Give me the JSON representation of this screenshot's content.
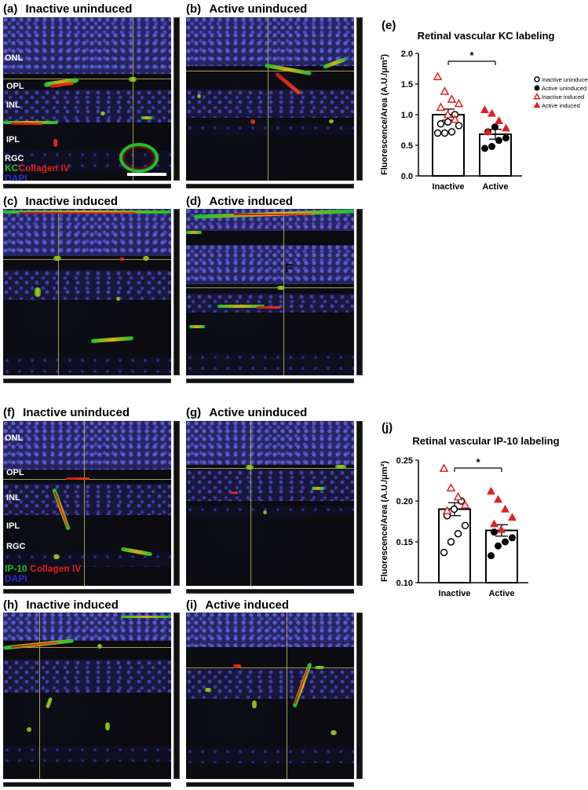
{
  "panels": {
    "a": {
      "letter": "(a)",
      "title": "Inactive uninduced"
    },
    "b": {
      "letter": "(b)",
      "title": "Active uninduced"
    },
    "c": {
      "letter": "(c)",
      "title": "Inactive induced"
    },
    "d": {
      "letter": "(d)",
      "title": "Active induced"
    },
    "f": {
      "letter": "(f)",
      "title": "Inactive uninduced"
    },
    "g": {
      "letter": "(g)",
      "title": "Active uninduced"
    },
    "h": {
      "letter": "(h)",
      "title": "Inactive induced"
    },
    "i": {
      "letter": "(i)",
      "title": "Active induced"
    }
  },
  "layers_top": [
    "ONL",
    "OPL",
    "INL",
    "IPL",
    "RGC"
  ],
  "layers_bottom": [
    "ONL",
    "OPL",
    "INL",
    "IPL",
    "RGC"
  ],
  "stain_top": {
    "green": "KC",
    "red": "Collagen IV",
    "blue": "DAPI"
  },
  "stain_bottom": {
    "green": "IP-10",
    "red": "Collagen IV",
    "blue": "DAPI"
  },
  "panel_d_mark": "F",
  "colors": {
    "green": "#1fbf2e",
    "red": "#e0201e",
    "blue": "#2233cc"
  },
  "chart_data": [
    {
      "panel": "(e)",
      "type": "bar",
      "title": "Retinal vascular KC labeling",
      "ylabel": "Fluorescence/Area (A.U./μm²)",
      "categories": [
        "Inactive",
        "Active"
      ],
      "values": [
        1.0,
        0.68
      ],
      "errors": [
        0.09,
        0.08
      ],
      "ylim": [
        0,
        2.0
      ],
      "yticks": [
        "0.0",
        "0.5",
        "1.0",
        "1.5",
        "2.0"
      ],
      "significance": "*",
      "legend": [
        "Inactive uninduced",
        "Active uninduced",
        "Inactive induced",
        "Active induced"
      ],
      "legend_placement": "right",
      "points": {
        "Inactive uninduced": [
          0.7,
          0.7,
          0.72,
          0.82,
          0.85,
          0.88,
          1.0
        ],
        "Inactive induced": [
          1.62,
          1.38,
          1.25,
          1.18,
          1.12,
          1.0,
          0.92
        ],
        "Active uninduced": [
          0.45,
          0.48,
          0.58,
          0.62,
          0.72,
          0.8
        ],
        "Active induced": [
          1.08,
          1.02,
          0.9,
          0.78,
          0.72
        ]
      }
    },
    {
      "panel": "(j)",
      "type": "bar",
      "title": "Retinal vascular IP-10 labeling",
      "ylabel": "Fluorescence/Area (A.U./μm²)",
      "categories": [
        "Inactive",
        "Active"
      ],
      "values": [
        0.19,
        0.164
      ],
      "errors": [
        0.008,
        0.007
      ],
      "ylim": [
        0.1,
        0.25
      ],
      "yticks": [
        "0.10",
        "0.15",
        "0.20",
        "0.25"
      ],
      "significance": "*",
      "points": {
        "Inactive uninduced": [
          0.137,
          0.15,
          0.16,
          0.17,
          0.182,
          0.19,
          0.2
        ],
        "Inactive induced": [
          0.24,
          0.216,
          0.205,
          0.195,
          0.188
        ],
        "Active uninduced": [
          0.133,
          0.145,
          0.15,
          0.155,
          0.162
        ],
        "Active induced": [
          0.212,
          0.202,
          0.19,
          0.18,
          0.172,
          0.165
        ]
      }
    }
  ]
}
